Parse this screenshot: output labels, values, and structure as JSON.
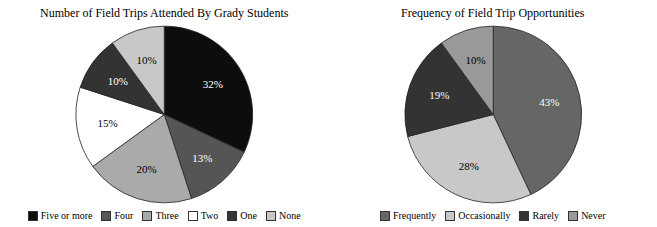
{
  "chart_data": [
    {
      "type": "pie",
      "title": "Number of Field Trips Attended By Grady Students",
      "categories": [
        "Five or more",
        "Four",
        "Three",
        "Two",
        "One",
        "None"
      ],
      "values": [
        32,
        13,
        20,
        15,
        10,
        10
      ],
      "value_labels": [
        "32%",
        "13%",
        "20%",
        "15%",
        "10%",
        "10%"
      ],
      "colors": [
        "#0d0d0d",
        "#555555",
        "#aaaaaa",
        "#ffffff",
        "#333333",
        "#c8c8c8"
      ],
      "data_labels": true,
      "legend": "bottom"
    },
    {
      "type": "pie",
      "title": "Frequency of Field Trip Opportunities",
      "categories": [
        "Frequently",
        "Occasionally",
        "Rarely",
        "Never"
      ],
      "values": [
        43,
        28,
        19,
        10
      ],
      "value_labels": [
        "43%",
        "28%",
        "19%",
        "10%"
      ],
      "colors": [
        "#666666",
        "#c8c8c8",
        "#333333",
        "#999999"
      ],
      "data_labels": true,
      "legend": "bottom"
    }
  ]
}
